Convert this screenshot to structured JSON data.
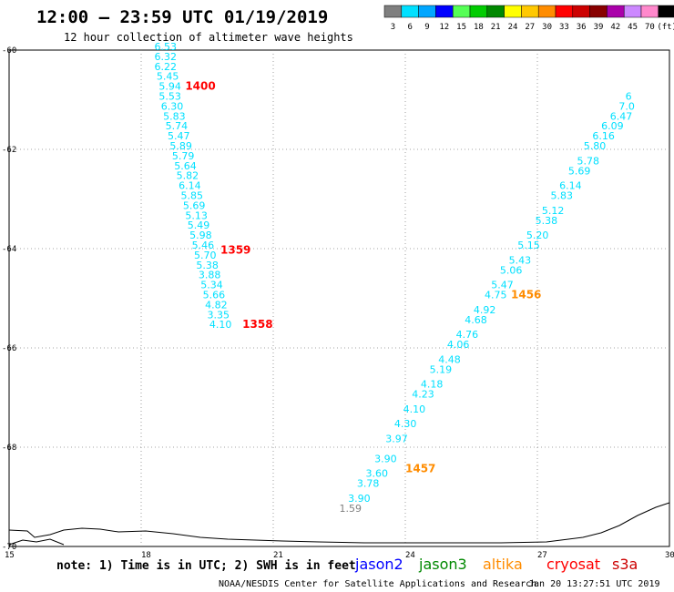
{
  "header": {
    "title": "12:00 – 23:59 UTC 01/19/2019",
    "subtitle": "12 hour collection of altimeter wave heights"
  },
  "color_scale": {
    "labels": [
      "3",
      "6",
      "9",
      "12",
      "15",
      "18",
      "21",
      "24",
      "27",
      "30",
      "33",
      "36",
      "39",
      "42",
      "45",
      "70",
      "(ft)"
    ],
    "colors": [
      "#7f7f7f",
      "#00e0ff",
      "#00a6ff",
      "#0000ff",
      "#55ff55",
      "#00cc00",
      "#008800",
      "#ffff00",
      "#ffc800",
      "#ff8c00",
      "#ff0000",
      "#cc0000",
      "#880000",
      "#aa00aa",
      "#cc88ff",
      "#ff88cc",
      "#000000"
    ]
  },
  "axes": {
    "lat_ticks": [
      "-60",
      "-62",
      "-64",
      "-66",
      "-68",
      "-70"
    ],
    "lon_ticks": [
      "15",
      "18",
      "21",
      "24",
      "27",
      "30"
    ]
  },
  "chart_data": {
    "type": "scatter",
    "x_label": "",
    "y_label": "",
    "xlim": [
      15,
      30
    ],
    "ylim": [
      -70,
      -60
    ],
    "track_a": {
      "color": "#00e0ff",
      "points": [
        {
          "x": 18.3,
          "y": -60.0,
          "v": "6.53"
        },
        {
          "x": 18.3,
          "y": -60.2,
          "v": "6.32"
        },
        {
          "x": 18.3,
          "y": -60.4,
          "v": "6.22"
        },
        {
          "x": 18.35,
          "y": -60.6,
          "v": "5.45"
        },
        {
          "x": 18.4,
          "y": -60.8,
          "v": "5.94"
        },
        {
          "x": 18.4,
          "y": -61.0,
          "v": "5.53"
        },
        {
          "x": 18.45,
          "y": -61.2,
          "v": "6.30"
        },
        {
          "x": 18.5,
          "y": -61.4,
          "v": "5.83"
        },
        {
          "x": 18.55,
          "y": -61.6,
          "v": "5.74"
        },
        {
          "x": 18.6,
          "y": -61.8,
          "v": "5.47"
        },
        {
          "x": 18.65,
          "y": -62.0,
          "v": "5.89"
        },
        {
          "x": 18.7,
          "y": -62.2,
          "v": "5.79"
        },
        {
          "x": 18.75,
          "y": -62.4,
          "v": "5.64"
        },
        {
          "x": 18.8,
          "y": -62.6,
          "v": "5.82"
        },
        {
          "x": 18.85,
          "y": -62.8,
          "v": "6.14"
        },
        {
          "x": 18.9,
          "y": -63.0,
          "v": "5.85"
        },
        {
          "x": 18.95,
          "y": -63.2,
          "v": "5.69"
        },
        {
          "x": 19.0,
          "y": -63.4,
          "v": "5.13"
        },
        {
          "x": 19.05,
          "y": -63.6,
          "v": "5.49"
        },
        {
          "x": 19.1,
          "y": -63.8,
          "v": "5.98"
        },
        {
          "x": 19.15,
          "y": -64.0,
          "v": "5.46"
        },
        {
          "x": 19.2,
          "y": -64.2,
          "v": "5.70"
        },
        {
          "x": 19.25,
          "y": -64.4,
          "v": "5.38"
        },
        {
          "x": 19.3,
          "y": -64.6,
          "v": "3.88"
        },
        {
          "x": 19.35,
          "y": -64.8,
          "v": "5.34"
        },
        {
          "x": 19.4,
          "y": -65.0,
          "v": "5.66"
        },
        {
          "x": 19.45,
          "y": -65.2,
          "v": "4.82"
        },
        {
          "x": 19.5,
          "y": -65.4,
          "v": "3.35"
        },
        {
          "x": 19.55,
          "y": -65.6,
          "v": "4.10"
        }
      ]
    },
    "track_b": {
      "color": "#00e0ff",
      "points": [
        {
          "x": 22.5,
          "y": -69.3,
          "v": "1.59"
        },
        {
          "x": 22.7,
          "y": -69.1,
          "v": "3.90"
        },
        {
          "x": 22.9,
          "y": -68.8,
          "v": "3.78"
        },
        {
          "x": 23.1,
          "y": -68.6,
          "v": "3.60"
        },
        {
          "x": 23.3,
          "y": -68.3,
          "v": "3.90"
        },
        {
          "x": 23.55,
          "y": -67.9,
          "v": "3.97"
        },
        {
          "x": 23.75,
          "y": -67.6,
          "v": "4.30"
        },
        {
          "x": 23.95,
          "y": -67.3,
          "v": "4.10"
        },
        {
          "x": 24.15,
          "y": -67.0,
          "v": "4.23"
        },
        {
          "x": 24.35,
          "y": -66.8,
          "v": "4.18"
        },
        {
          "x": 24.55,
          "y": -66.5,
          "v": "5.19"
        },
        {
          "x": 24.75,
          "y": -66.3,
          "v": "4.48"
        },
        {
          "x": 24.95,
          "y": -66.0,
          "v": "4.06"
        },
        {
          "x": 25.15,
          "y": -65.8,
          "v": "4.76"
        },
        {
          "x": 25.35,
          "y": -65.5,
          "v": "4.68"
        },
        {
          "x": 25.55,
          "y": -65.3,
          "v": "4.92"
        },
        {
          "x": 25.8,
          "y": -65.0,
          "v": "4.75"
        },
        {
          "x": 25.95,
          "y": -64.8,
          "v": "5.47"
        },
        {
          "x": 26.15,
          "y": -64.5,
          "v": "5.06"
        },
        {
          "x": 26.35,
          "y": -64.3,
          "v": "5.43"
        },
        {
          "x": 26.55,
          "y": -64.0,
          "v": "5.15"
        },
        {
          "x": 26.75,
          "y": -63.8,
          "v": "5.20"
        },
        {
          "x": 26.95,
          "y": -63.5,
          "v": "5.38"
        },
        {
          "x": 27.1,
          "y": -63.3,
          "v": "5.12"
        },
        {
          "x": 27.3,
          "y": -63.0,
          "v": "5.83"
        },
        {
          "x": 27.5,
          "y": -62.8,
          "v": "6.14"
        },
        {
          "x": 27.7,
          "y": -62.5,
          "v": "5.69"
        },
        {
          "x": 27.9,
          "y": -62.3,
          "v": "5.78"
        },
        {
          "x": 28.05,
          "y": -62.0,
          "v": "5.80"
        },
        {
          "x": 28.25,
          "y": -61.8,
          "v": "6.16"
        },
        {
          "x": 28.45,
          "y": -61.6,
          "v": "6.09"
        },
        {
          "x": 28.65,
          "y": -61.4,
          "v": "6.47"
        },
        {
          "x": 28.85,
          "y": -61.2,
          "v": "7.0"
        },
        {
          "x": 29.0,
          "y": -61.0,
          "v": "6"
        }
      ]
    },
    "times": [
      {
        "x": 19.0,
        "y": -60.8,
        "t": "1400",
        "color": "#ff0000"
      },
      {
        "x": 19.8,
        "y": -64.1,
        "t": "1359",
        "color": "#ff0000"
      },
      {
        "x": 20.3,
        "y": -65.6,
        "t": "1358",
        "color": "#ff0000"
      },
      {
        "x": 26.4,
        "y": -65.0,
        "t": "1456",
        "color": "#ff8c00"
      },
      {
        "x": 24.0,
        "y": -68.5,
        "t": "1457",
        "color": "#ff8c00"
      }
    ]
  },
  "footer": {
    "note": "note: 1) Time is in UTC; 2) SWH is in feet",
    "satellites": [
      {
        "name": "jason2",
        "color": "#0000ff"
      },
      {
        "name": "jason3",
        "color": "#008800"
      },
      {
        "name": "altika",
        "color": "#ff8c00"
      },
      {
        "name": "cryosat",
        "color": "#ff0000"
      },
      {
        "name": "s3a",
        "color": "#cc0000"
      }
    ],
    "credit": "NOAA/NESDIS Center for Satellite Applications and Research",
    "timestamp": "Jan 20 13:27:51 UTC 2019"
  }
}
